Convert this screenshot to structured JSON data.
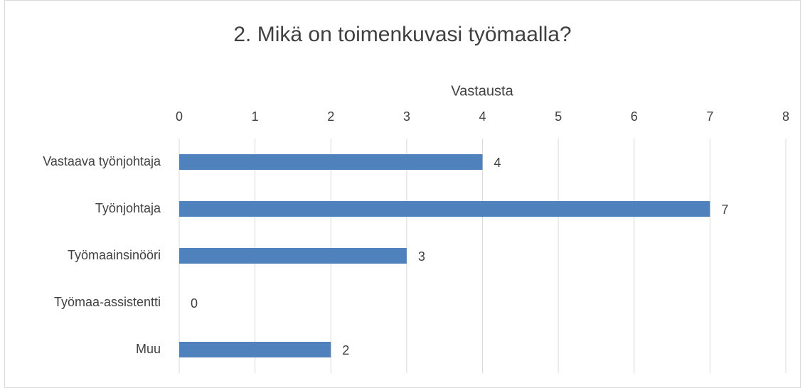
{
  "chart_data": {
    "type": "bar",
    "orientation": "horizontal",
    "title": "2. Mikä on toimenkuvasi työmaalla?",
    "x_label": "Vastausta",
    "categories": [
      "Vastaava työnjohtaja",
      "Työnjohtaja",
      "Työmaainsinööri",
      "Työmaa-assistentti",
      "Muu"
    ],
    "values": [
      4,
      7,
      3,
      0,
      2
    ],
    "color": "#4f81bd",
    "xlim": [
      0,
      8
    ],
    "xticks": [
      0,
      1,
      2,
      3,
      4,
      5,
      6,
      7,
      8
    ],
    "grid": true,
    "data_labels": true
  }
}
